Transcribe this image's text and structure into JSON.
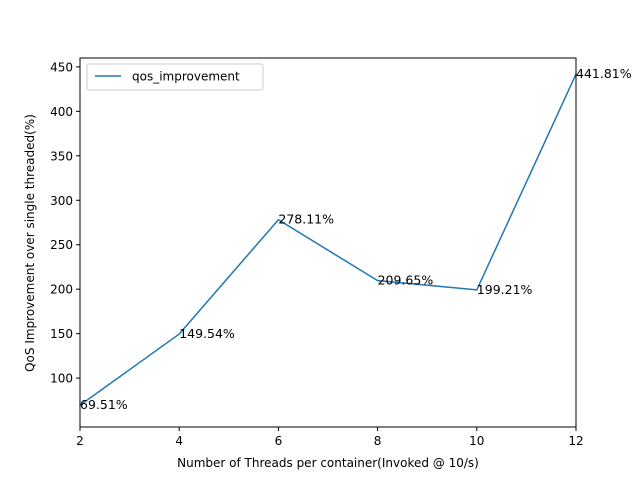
{
  "chart_data": {
    "type": "line",
    "title": "",
    "xlabel": "Number of Threads per container(Invoked @ 10/s)",
    "ylabel": "QoS Improvement over single threaded(%)",
    "xlim": [
      2,
      12
    ],
    "ylim": [
      45,
      460
    ],
    "x_ticks": [
      2,
      4,
      6,
      8,
      10,
      12
    ],
    "y_ticks": [
      100,
      150,
      200,
      250,
      300,
      350,
      400,
      450
    ],
    "grid": false,
    "legend_position": "upper-left",
    "series": [
      {
        "name": "qos_improvement",
        "color": "#1f77b4",
        "x": [
          2,
          4,
          6,
          8,
          10,
          12
        ],
        "values": [
          69.51,
          149.54,
          278.11,
          209.65,
          199.21,
          441.81
        ],
        "labels": [
          "69.51%",
          "149.54%",
          "278.11%",
          "209.65%",
          "199.21%",
          "441.81%"
        ]
      }
    ]
  }
}
